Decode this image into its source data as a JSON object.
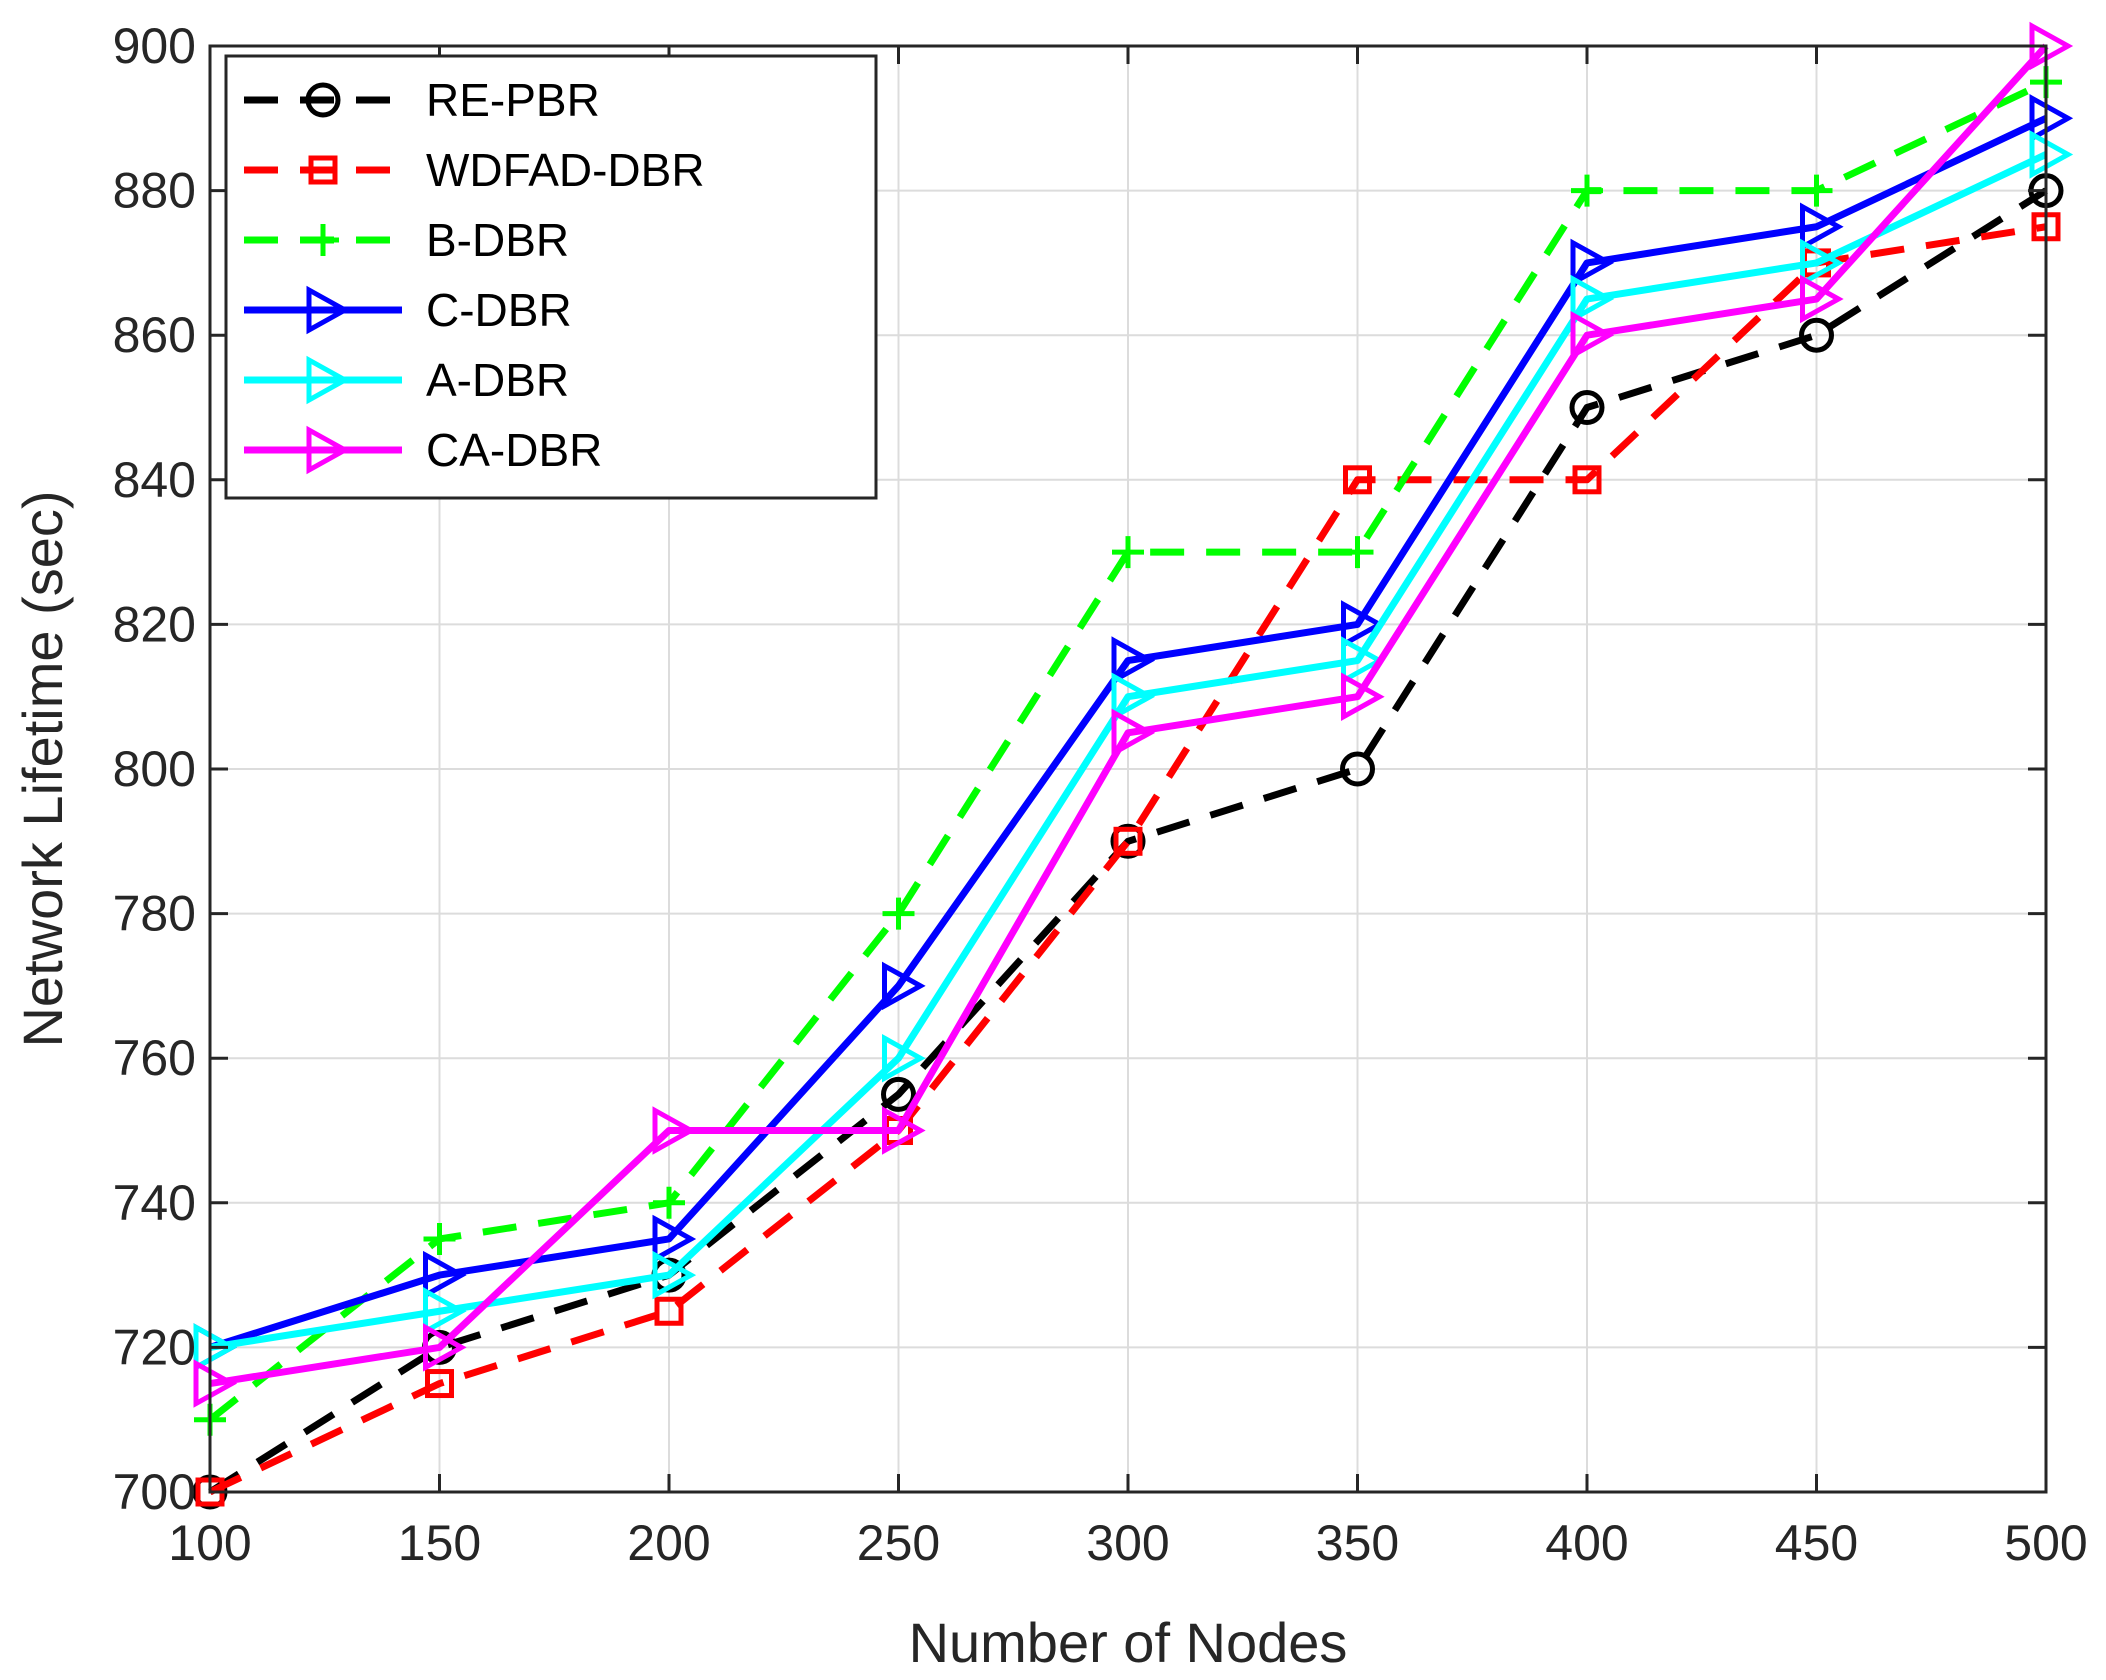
{
  "chart_data": {
    "type": "line",
    "title": "",
    "xlabel": "Number of Nodes",
    "ylabel": "Network Lifetime (sec)",
    "x": [
      100,
      150,
      200,
      250,
      300,
      350,
      400,
      450,
      500
    ],
    "xlim": [
      100,
      500
    ],
    "ylim": [
      700,
      900
    ],
    "xticks": [
      "100",
      "150",
      "200",
      "250",
      "300",
      "350",
      "400",
      "450",
      "500"
    ],
    "yticks": [
      "700",
      "720",
      "740",
      "760",
      "780",
      "800",
      "820",
      "840",
      "860",
      "880",
      "900"
    ],
    "grid": true,
    "legend_position": "top-left",
    "series": [
      {
        "name": "RE-PBR",
        "color": "#000000",
        "dash": "dashed",
        "marker": "circle",
        "values": [
          700,
          720,
          730,
          755,
          790,
          800,
          850,
          860,
          880
        ]
      },
      {
        "name": "WDFAD-DBR",
        "color": "#ff0000",
        "dash": "dashed",
        "marker": "square",
        "values": [
          700,
          715,
          725,
          750,
          790,
          840,
          840,
          870,
          875
        ]
      },
      {
        "name": "B-DBR",
        "color": "#00ff00",
        "dash": "dashed",
        "marker": "plus",
        "values": [
          710,
          735,
          740,
          780,
          830,
          830,
          880,
          880,
          895
        ]
      },
      {
        "name": "C-DBR",
        "color": "#0000ff",
        "dash": "solid",
        "marker": "triangle-right",
        "values": [
          720,
          730,
          735,
          770,
          815,
          820,
          870,
          875,
          890
        ]
      },
      {
        "name": "A-DBR",
        "color": "#00ffff",
        "dash": "solid",
        "marker": "triangle-right",
        "values": [
          720,
          725,
          730,
          760,
          810,
          815,
          865,
          870,
          885
        ]
      },
      {
        "name": "CA-DBR",
        "color": "#ff00ff",
        "dash": "solid",
        "marker": "triangle-right",
        "values": [
          715,
          720,
          750,
          750,
          805,
          810,
          860,
          865,
          900
        ]
      }
    ]
  }
}
